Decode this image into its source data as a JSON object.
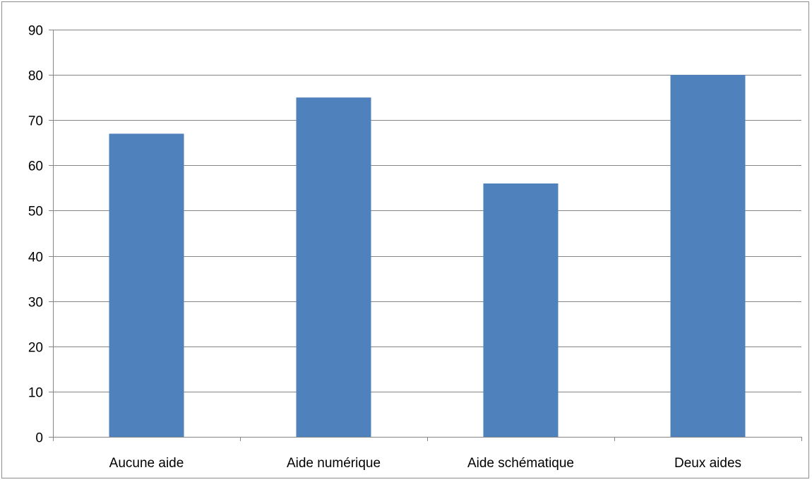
{
  "chart_data": {
    "type": "bar",
    "title": "",
    "xlabel": "",
    "ylabel": "",
    "categories": [
      "Aucune aide",
      "Aide numérique",
      "Aide schématique",
      "Deux aides"
    ],
    "values": [
      67,
      75,
      56,
      80
    ],
    "ylim": [
      0,
      90
    ],
    "yticks": [
      0,
      10,
      20,
      30,
      40,
      50,
      60,
      70,
      80,
      90
    ],
    "grid": true,
    "legend": "none",
    "colors": {
      "bar": "#4f81bd",
      "grid": "#868686",
      "axis": "#868686",
      "frame": "#8c8c8c"
    }
  }
}
